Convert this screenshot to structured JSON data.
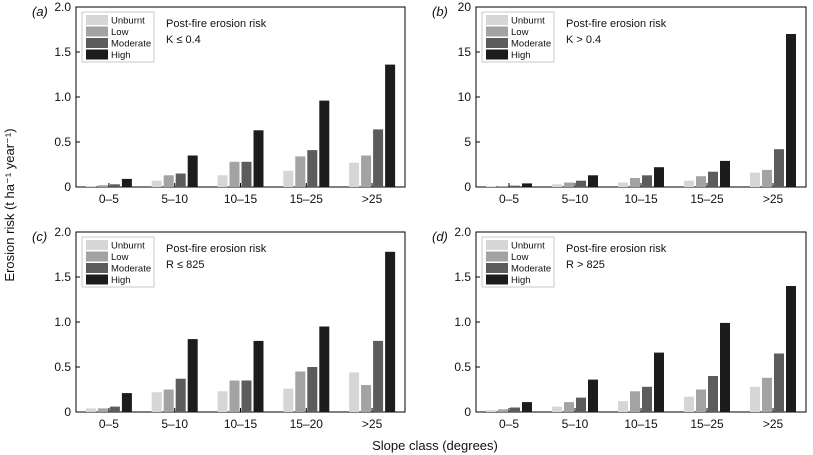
{
  "figure": {
    "ylabel": "Erosion risk (t ha⁻¹ year⁻¹)",
    "xlabel": "Slope class (degrees)"
  },
  "colors": {
    "Unburnt": "#d6d6d6",
    "Low": "#a3a3a3",
    "Moderate": "#5c5c5c",
    "High": "#1c1c1c"
  },
  "chart_data": [
    {
      "type": "bar",
      "panel": "(a)",
      "title": "Post-fire erosion risk",
      "subtitle": "K ≤ 0.4",
      "categories": [
        "0–5",
        "5–10",
        "10–15",
        "15–25",
        ">25"
      ],
      "ylim": [
        0,
        2.0
      ],
      "yticks": [
        0,
        0.5,
        1.0,
        1.5,
        2.0
      ],
      "ytick_labels": [
        "0",
        "0.5",
        "1.0",
        "1.5",
        "2.0"
      ],
      "legend": "top-left",
      "series": [
        {
          "name": "Unburnt",
          "values": [
            0.01,
            0.07,
            0.13,
            0.18,
            0.27
          ]
        },
        {
          "name": "Low",
          "values": [
            0.02,
            0.13,
            0.28,
            0.34,
            0.35
          ]
        },
        {
          "name": "Moderate",
          "values": [
            0.03,
            0.15,
            0.28,
            0.41,
            0.64
          ]
        },
        {
          "name": "High",
          "values": [
            0.09,
            0.35,
            0.63,
            0.96,
            1.36
          ]
        }
      ]
    },
    {
      "type": "bar",
      "panel": "(b)",
      "title": "Post-fire erosion risk",
      "subtitle": "K > 0.4",
      "categories": [
        "0–5",
        "5–10",
        "10–15",
        "15–25",
        ">25"
      ],
      "ylim": [
        0,
        20
      ],
      "yticks": [
        0,
        5,
        10,
        15,
        20
      ],
      "ytick_labels": [
        "0",
        "5",
        "10",
        "15",
        "20"
      ],
      "legend": "top-left",
      "series": [
        {
          "name": "Unburnt",
          "values": [
            0.05,
            0.3,
            0.5,
            0.7,
            1.6
          ]
        },
        {
          "name": "Low",
          "values": [
            0.1,
            0.5,
            1.0,
            1.2,
            1.9
          ]
        },
        {
          "name": "Moderate",
          "values": [
            0.15,
            0.7,
            1.3,
            1.7,
            4.2
          ]
        },
        {
          "name": "High",
          "values": [
            0.4,
            1.3,
            2.2,
            2.9,
            17.0
          ]
        }
      ]
    },
    {
      "type": "bar",
      "panel": "(c)",
      "title": "Post-fire erosion risk",
      "subtitle": "R ≤ 825",
      "categories": [
        "0–5",
        "5–10",
        "10–15",
        "15–20",
        ">25"
      ],
      "ylim": [
        0,
        2.0
      ],
      "yticks": [
        0,
        0.5,
        1.0,
        1.5,
        2.0
      ],
      "ytick_labels": [
        "0",
        "0.5",
        "1.0",
        "1.5",
        "2.0"
      ],
      "legend": "top-left",
      "series": [
        {
          "name": "Unburnt",
          "values": [
            0.04,
            0.22,
            0.23,
            0.26,
            0.44
          ]
        },
        {
          "name": "Low",
          "values": [
            0.04,
            0.25,
            0.35,
            0.45,
            0.3
          ]
        },
        {
          "name": "Moderate",
          "values": [
            0.06,
            0.37,
            0.35,
            0.5,
            0.79
          ]
        },
        {
          "name": "High",
          "values": [
            0.21,
            0.81,
            0.79,
            0.95,
            1.78
          ]
        }
      ]
    },
    {
      "type": "bar",
      "panel": "(d)",
      "title": "Post-fire erosion risk",
      "subtitle": "R > 825",
      "categories": [
        "0–5",
        "5–10",
        "10–15",
        "15–25",
        ">25"
      ],
      "ylim": [
        0,
        2.0
      ],
      "yticks": [
        0,
        0.5,
        1.0,
        1.5,
        2.0
      ],
      "ytick_labels": [
        "0",
        "0.5",
        "1.0",
        "1.5",
        "2.0"
      ],
      "legend": "top-left",
      "series": [
        {
          "name": "Unburnt",
          "values": [
            0.02,
            0.06,
            0.12,
            0.17,
            0.28
          ]
        },
        {
          "name": "Low",
          "values": [
            0.03,
            0.11,
            0.23,
            0.25,
            0.38
          ]
        },
        {
          "name": "Moderate",
          "values": [
            0.05,
            0.16,
            0.28,
            0.4,
            0.65
          ]
        },
        {
          "name": "High",
          "values": [
            0.11,
            0.36,
            0.66,
            0.99,
            1.4
          ]
        }
      ]
    }
  ]
}
